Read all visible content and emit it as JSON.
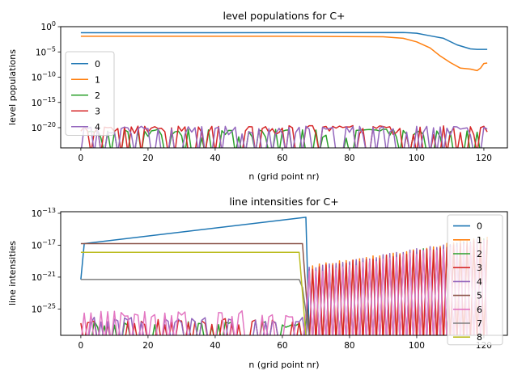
{
  "chart_data": [
    {
      "type": "line",
      "title": "level populations for C+",
      "xlabel": "n (grid point nr)",
      "ylabel": "level populations",
      "yscale": "log",
      "xlim": [
        -6,
        127
      ],
      "ylim_exp": [
        -24,
        0
      ],
      "x_ticks": [
        0,
        20,
        40,
        60,
        80,
        100,
        120
      ],
      "y_ticks": [
        {
          "exp": 0,
          "label": "10",
          "sup": "0"
        },
        {
          "exp": -5,
          "label": "10",
          "sup": "−5"
        },
        {
          "exp": -10,
          "label": "10",
          "sup": "−10"
        },
        {
          "exp": -15,
          "label": "10",
          "sup": "−15"
        },
        {
          "exp": -20,
          "label": "10",
          "sup": "−20"
        }
      ],
      "legend_position": "center-left",
      "grid": false,
      "series": [
        {
          "name": "0",
          "color": "#1f77b4",
          "kind": "smooth",
          "points": [
            [
              0,
              -1.2
            ],
            [
              40,
              -1.2
            ],
            [
              96,
              -1.15
            ],
            [
              100,
              -1.3
            ],
            [
              104,
              -1.8
            ],
            [
              108,
              -2.3
            ],
            [
              112,
              -3.6
            ],
            [
              116,
              -4.4
            ],
            [
              118,
              -4.5
            ],
            [
              121,
              -4.5
            ]
          ]
        },
        {
          "name": "1",
          "color": "#ff7f0e",
          "kind": "smooth",
          "points": [
            [
              0,
              -1.9
            ],
            [
              60,
              -1.9
            ],
            [
              90,
              -2.0
            ],
            [
              96,
              -2.3
            ],
            [
              100,
              -3.0
            ],
            [
              104,
              -4.2
            ],
            [
              107,
              -5.8
            ],
            [
              110,
              -7.1
            ],
            [
              113,
              -8.2
            ],
            [
              116,
              -8.4
            ],
            [
              118,
              -8.7
            ],
            [
              119,
              -8.2
            ],
            [
              120,
              -7.3
            ],
            [
              121,
              -7.2
            ]
          ]
        },
        {
          "name": "2",
          "color": "#2ca02c",
          "kind": "spiky",
          "n_start": 2,
          "n_end": 119,
          "seed": 3,
          "peak_exp": -20.3,
          "floor_exp": -24
        },
        {
          "name": "3",
          "color": "#d62728",
          "kind": "spiky",
          "n_start": 0,
          "n_end": 121,
          "seed": 7,
          "peak_exp": -19.6,
          "floor_exp": -24
        },
        {
          "name": "4",
          "color": "#9467bd",
          "kind": "spiky",
          "n_start": 0,
          "n_end": 121,
          "seed": 11,
          "peak_exp": -19.7,
          "floor_exp": -24
        }
      ]
    },
    {
      "type": "line",
      "title": "line intensities for C+",
      "xlabel": "n (grid point nr)",
      "ylabel": "line intensities",
      "yscale": "log",
      "xlim": [
        -6,
        127
      ],
      "ylim_exp": [
        -28.3,
        -12.8
      ],
      "x_ticks": [
        0,
        20,
        40,
        60,
        80,
        100,
        120
      ],
      "y_ticks": [
        {
          "exp": -13,
          "label": "10",
          "sup": "−13"
        },
        {
          "exp": -17,
          "label": "10",
          "sup": "−17"
        },
        {
          "exp": -21,
          "label": "10",
          "sup": "−21"
        },
        {
          "exp": -25,
          "label": "10",
          "sup": "−25"
        }
      ],
      "legend_position": "right",
      "grid": false,
      "series": [
        {
          "name": "0",
          "color": "#1f77b4",
          "kind": "segment",
          "points": [
            [
              0,
              -21.3
            ],
            [
              1,
              -16.8
            ],
            [
              67,
              -13.5
            ],
            [
              68,
              -28.3
            ]
          ]
        },
        {
          "name": "1",
          "color": "#ff7f0e",
          "kind": "osc",
          "n_start": 68,
          "n_end": 121,
          "seed": 2,
          "top_start": -19.5,
          "top_end": -15.9,
          "floor_exp": -28.3
        },
        {
          "name": "2",
          "color": "#2ca02c",
          "kind": "osc",
          "n_start": 68,
          "n_end": 121,
          "seed": 4,
          "top_start": -20.0,
          "top_end": -16.0,
          "floor_exp": -28.3,
          "pre_spiky": true,
          "pre_seed": 5,
          "pre_peak": -26.5
        },
        {
          "name": "3",
          "color": "#d62728",
          "kind": "osc",
          "n_start": 68,
          "n_end": 121,
          "seed": 6,
          "top_start": -19.8,
          "top_end": -16.1,
          "floor_exp": -28.3,
          "pre_spiky": true,
          "pre_seed": 9,
          "pre_peak": -26.2
        },
        {
          "name": "4",
          "color": "#9467bd",
          "kind": "osc",
          "n_start": 68,
          "n_end": 121,
          "seed": 8,
          "top_start": -19.6,
          "top_end": -16.0,
          "floor_exp": -28.3,
          "pre_spiky": true,
          "pre_seed": 13,
          "pre_peak": -26.0
        },
        {
          "name": "5",
          "color": "#8c564b",
          "kind": "segment",
          "points": [
            [
              0,
              -16.8
            ],
            [
              66,
              -16.8
            ],
            [
              68,
              -28.3
            ]
          ]
        },
        {
          "name": "6",
          "color": "#e377c2",
          "kind": "osc",
          "n_start": 68,
          "n_end": 121,
          "seed": 10,
          "top_start": -20.2,
          "top_end": -16.3,
          "floor_exp": -28.3,
          "pre_spiky": true,
          "pre_seed": 17,
          "pre_peak": -25.2
        },
        {
          "name": "7",
          "color": "#7f7f7f",
          "kind": "segment",
          "points": [
            [
              0,
              -21.3
            ],
            [
              65,
              -21.3
            ],
            [
              66,
              -22.3
            ],
            [
              68,
              -28.3
            ]
          ]
        },
        {
          "name": "8",
          "color": "#bcbd22",
          "kind": "segment",
          "points": [
            [
              0,
              -17.9
            ],
            [
              65,
              -17.9
            ],
            [
              67,
              -28.3
            ]
          ]
        }
      ]
    }
  ]
}
